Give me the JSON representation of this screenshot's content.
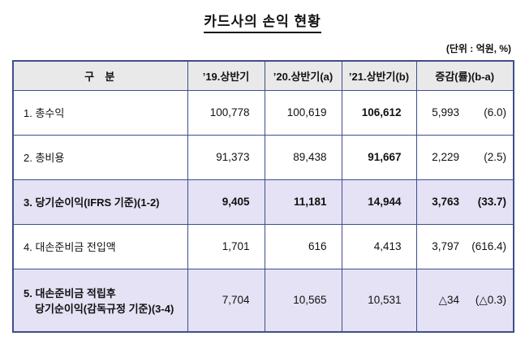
{
  "title": "카드사의 손익 현황",
  "unit_note": "(단위 : 억원, %)",
  "colors": {
    "border_color": "#3e4f8b",
    "header_bg": "#e9e9e9",
    "highlight_bg": "#e4e2f4"
  },
  "chart_data": {
    "type": "table",
    "title": "카드사의 손익 현황",
    "unit": "억원, %",
    "columns": [
      "구  분",
      "’19.상반기",
      "’20.상반기(a)",
      "’21.상반기(b)",
      "증감(률)(b-a)"
    ],
    "rows": [
      [
        "1. 총수익",
        "100,778",
        "100,619",
        "106,612",
        "5,993",
        "(6.0)"
      ],
      [
        "2. 총비용",
        "91,373",
        "89,438",
        "91,667",
        "2,229",
        "(2.5)"
      ],
      [
        "3. 당기순이익(IFRS 기준)(1-2)",
        "9,405",
        "11,181",
        "14,944",
        "3,763",
        "(33.7)"
      ],
      [
        "4. 대손준비금 전입액",
        "1,701",
        "616",
        "4,413",
        "3,797",
        "(616.4)"
      ],
      [
        "5. 대손준비금 적립후 당기순이익(감독규정 기준)(3-4)",
        "7,704",
        "10,565",
        "10,531",
        "△34",
        "(△0.3)"
      ]
    ]
  },
  "table": {
    "headers": {
      "category": "구  분",
      "h19": "’19.상반기",
      "h20": "’20.상반기(a)",
      "h21": "’21.상반기(b)",
      "change": "증감(률)(b-a)"
    },
    "rows": [
      {
        "label": "1. 총수익",
        "v19": "100,778",
        "v20": "100,619",
        "v21": "106,612",
        "diff": "5,993",
        "rate": "(6.0)"
      },
      {
        "label": "2. 총비용",
        "v19": "91,373",
        "v20": "89,438",
        "v21": "91,667",
        "diff": "2,229",
        "rate": "(2.5)"
      },
      {
        "label": "3. 당기순이익(IFRS 기준)(1-2)",
        "v19": "9,405",
        "v20": "11,181",
        "v21": "14,944",
        "diff": "3,763",
        "rate": "(33.7)"
      },
      {
        "label": "4. 대손준비금 전입액",
        "v19": "1,701",
        "v20": "616",
        "v21": "4,413",
        "diff": "3,797",
        "rate": "(616.4)"
      },
      {
        "label_line1": "5. 대손준비금 적립후",
        "label_line2": "당기순이익(감독규정 기준)(3-4)",
        "v19": "7,704",
        "v20": "10,565",
        "v21": "10,531",
        "diff": "△34",
        "rate": "(△0.3)"
      }
    ]
  }
}
